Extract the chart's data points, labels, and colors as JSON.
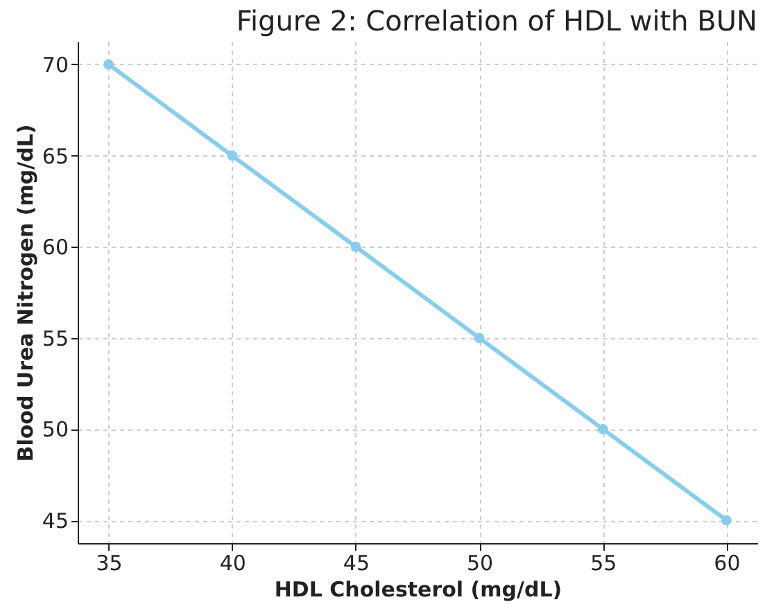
{
  "chart_data": {
    "type": "line",
    "title": "Figure 2: Correlation of HDL with BUN",
    "xlabel": "HDL Cholesterol (mg/dL)",
    "ylabel": "Blood Urea Nitrogen (mg/dL)",
    "x": [
      35,
      40,
      45,
      50,
      55,
      60
    ],
    "series": [
      {
        "color": "#87ceeb",
        "values": [
          70,
          65,
          60,
          55,
          50,
          45
        ]
      }
    ],
    "xlim": [
      33.75,
      61.25
    ],
    "xticks": [
      35,
      40,
      45,
      50,
      55,
      60
    ],
    "ylim": [
      43.75,
      71.25
    ],
    "yticks": [
      45,
      50,
      55,
      60,
      65,
      70
    ],
    "grid": true,
    "marker": "circle",
    "line_style": "solid"
  }
}
